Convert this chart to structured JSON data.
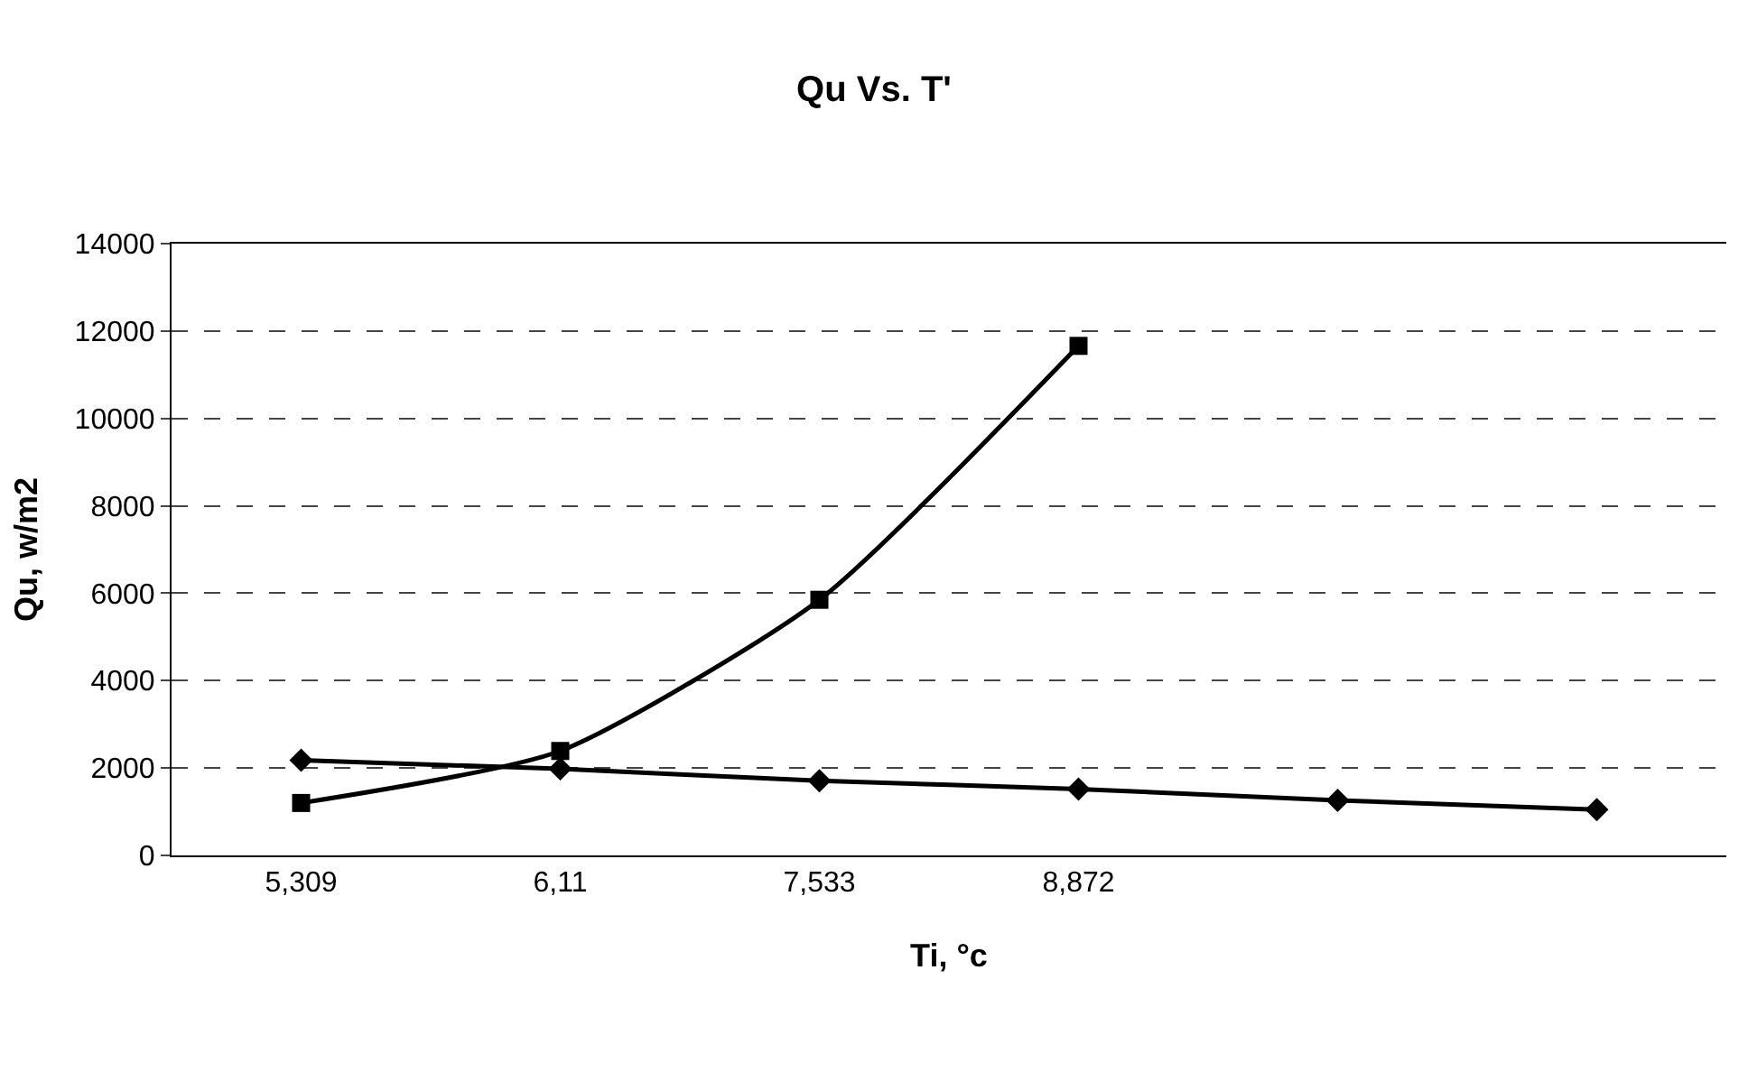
{
  "chart_data": {
    "type": "line",
    "title": "Qu Vs. T'",
    "xlabel": "Ti, °c",
    "ylabel": "Qu, w/m2",
    "categories": [
      "5,309",
      "6,11",
      "7,533",
      "8,872",
      null,
      null
    ],
    "series": [
      {
        "color": "#000000",
        "marker": "diamond",
        "values": [
          2180,
          1980,
          1710,
          1520,
          1260,
          1050
        ]
      },
      {
        "color": "#000000",
        "marker": "square",
        "values": [
          1200,
          2390,
          5850,
          11660,
          null,
          null
        ]
      }
    ],
    "ylim": [
      0,
      14000
    ],
    "yticks": [
      0,
      2000,
      4000,
      6000,
      8000,
      10000,
      12000,
      14000
    ],
    "grid": "y"
  }
}
